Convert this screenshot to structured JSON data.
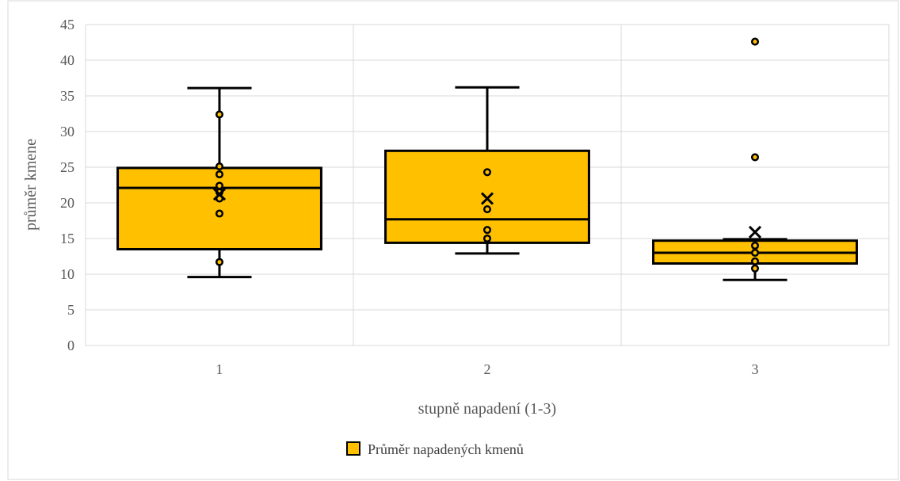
{
  "chart_data": {
    "type": "box",
    "xlabel": "stupně napadení (1-3)",
    "ylabel": "průměr kmene",
    "ylim": [
      0,
      45
    ],
    "yticks": [
      0,
      5,
      10,
      15,
      20,
      25,
      30,
      35,
      40,
      45
    ],
    "categories": [
      "1",
      "2",
      "3"
    ],
    "grid": true,
    "legend_position": "bottom",
    "series": [
      {
        "name": "Průměr napadených kmenů",
        "color": "#FFC000",
        "boxes": [
          {
            "category": "1",
            "whisker_low": 9.6,
            "q1": 13.5,
            "median": 22.1,
            "q3": 24.9,
            "whisker_high": 36.1,
            "mean": 21.2,
            "points": [
              11.7,
              18.5,
              20.6,
              21.5,
              22.4,
              24.0,
              25.1,
              32.4
            ]
          },
          {
            "category": "2",
            "whisker_low": 12.9,
            "q1": 14.4,
            "median": 17.7,
            "q3": 27.3,
            "whisker_high": 36.2,
            "mean": 20.6,
            "points": [
              15.0,
              16.2,
              19.1,
              24.3
            ]
          },
          {
            "category": "3",
            "whisker_low": 9.2,
            "q1": 11.5,
            "median": 13.0,
            "q3": 14.7,
            "whisker_high": 14.9,
            "mean": 15.9,
            "points": [
              10.8,
              11.8,
              13.0,
              14.0,
              26.4,
              42.6
            ]
          }
        ]
      }
    ]
  }
}
